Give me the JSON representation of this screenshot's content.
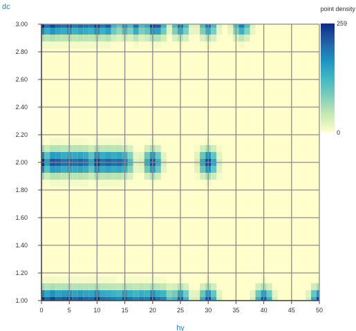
{
  "chart_data": {
    "type": "heatmap",
    "title": "",
    "xlabel": "hy",
    "ylabel": "dc",
    "xlim": [
      0,
      50
    ],
    "ylim": [
      1.0,
      3.0
    ],
    "x_ticks": [
      0,
      5,
      10,
      15,
      20,
      25,
      30,
      35,
      40,
      45,
      50
    ],
    "x_tick_labels": [
      "0",
      "5",
      "10",
      "15",
      "20",
      "25",
      "30",
      "35",
      "40",
      "45",
      "50"
    ],
    "y_ticks": [
      1.0,
      1.2,
      1.4,
      1.6,
      1.8,
      2.0,
      2.2,
      2.4,
      2.6,
      2.8,
      3.0
    ],
    "y_tick_labels": [
      "1.00",
      "1.20",
      "1.40",
      "1.60",
      "1.80",
      "2.00",
      "2.20",
      "2.40",
      "2.60",
      "2.80",
      "3.00"
    ],
    "grid": true,
    "legend": {
      "title": "point density",
      "min": 0,
      "max": 259,
      "min_label": "0",
      "max_label": "259",
      "placement": "right",
      "colors": [
        "#ffffcc",
        "#c7e9b4",
        "#7fcdbb",
        "#41b6c4",
        "#1d91c0",
        "#225ea8",
        "#0c2c84"
      ]
    },
    "background_color": "#ffffcc",
    "rows": [
      {
        "y": 3.0,
        "points": [
          {
            "x": 0,
            "density": 259
          },
          {
            "x": 1,
            "density": 200
          },
          {
            "x": 2,
            "density": 235
          },
          {
            "x": 3,
            "density": 210
          },
          {
            "x": 4,
            "density": 200
          },
          {
            "x": 5,
            "density": 230
          },
          {
            "x": 6,
            "density": 190
          },
          {
            "x": 7,
            "density": 210
          },
          {
            "x": 8,
            "density": 200
          },
          {
            "x": 9,
            "density": 190
          },
          {
            "x": 10,
            "density": 240
          },
          {
            "x": 11,
            "density": 190
          },
          {
            "x": 12,
            "density": 220
          },
          {
            "x": 15,
            "density": 170
          },
          {
            "x": 17,
            "density": 200
          },
          {
            "x": 20,
            "density": 240
          },
          {
            "x": 21,
            "density": 220
          },
          {
            "x": 25,
            "density": 200
          },
          {
            "x": 30,
            "density": 200
          },
          {
            "x": 36,
            "density": 190
          }
        ]
      },
      {
        "y": 2.0,
        "points": [
          {
            "x": 0,
            "density": 259
          },
          {
            "x": 2,
            "density": 225
          },
          {
            "x": 3,
            "density": 220
          },
          {
            "x": 4,
            "density": 200
          },
          {
            "x": 5,
            "density": 215
          },
          {
            "x": 6,
            "density": 205
          },
          {
            "x": 7,
            "density": 215
          },
          {
            "x": 8,
            "density": 200
          },
          {
            "x": 10,
            "density": 245
          },
          {
            "x": 11,
            "density": 200
          },
          {
            "x": 12,
            "density": 215
          },
          {
            "x": 13,
            "density": 200
          },
          {
            "x": 14,
            "density": 210
          },
          {
            "x": 15,
            "density": 190
          },
          {
            "x": 20,
            "density": 230
          },
          {
            "x": 30,
            "density": 240
          }
        ]
      },
      {
        "y": 1.0,
        "points": [
          {
            "x": 0,
            "density": 259
          },
          {
            "x": 1,
            "density": 210
          },
          {
            "x": 2,
            "density": 240
          },
          {
            "x": 3,
            "density": 215
          },
          {
            "x": 4,
            "density": 225
          },
          {
            "x": 5,
            "density": 240
          },
          {
            "x": 6,
            "density": 215
          },
          {
            "x": 7,
            "density": 225
          },
          {
            "x": 8,
            "density": 215
          },
          {
            "x": 9,
            "density": 210
          },
          {
            "x": 10,
            "density": 250
          },
          {
            "x": 11,
            "density": 205
          },
          {
            "x": 12,
            "density": 200
          },
          {
            "x": 13,
            "density": 190
          },
          {
            "x": 14,
            "density": 180
          },
          {
            "x": 15,
            "density": 230
          },
          {
            "x": 16,
            "density": 200
          },
          {
            "x": 17,
            "density": 185
          },
          {
            "x": 18,
            "density": 200
          },
          {
            "x": 19,
            "density": 190
          },
          {
            "x": 20,
            "density": 245
          },
          {
            "x": 21,
            "density": 200
          },
          {
            "x": 22,
            "density": 185
          },
          {
            "x": 25,
            "density": 215
          },
          {
            "x": 30,
            "density": 235
          },
          {
            "x": 40,
            "density": 225
          },
          {
            "x": 50,
            "density": 235
          }
        ]
      }
    ]
  }
}
